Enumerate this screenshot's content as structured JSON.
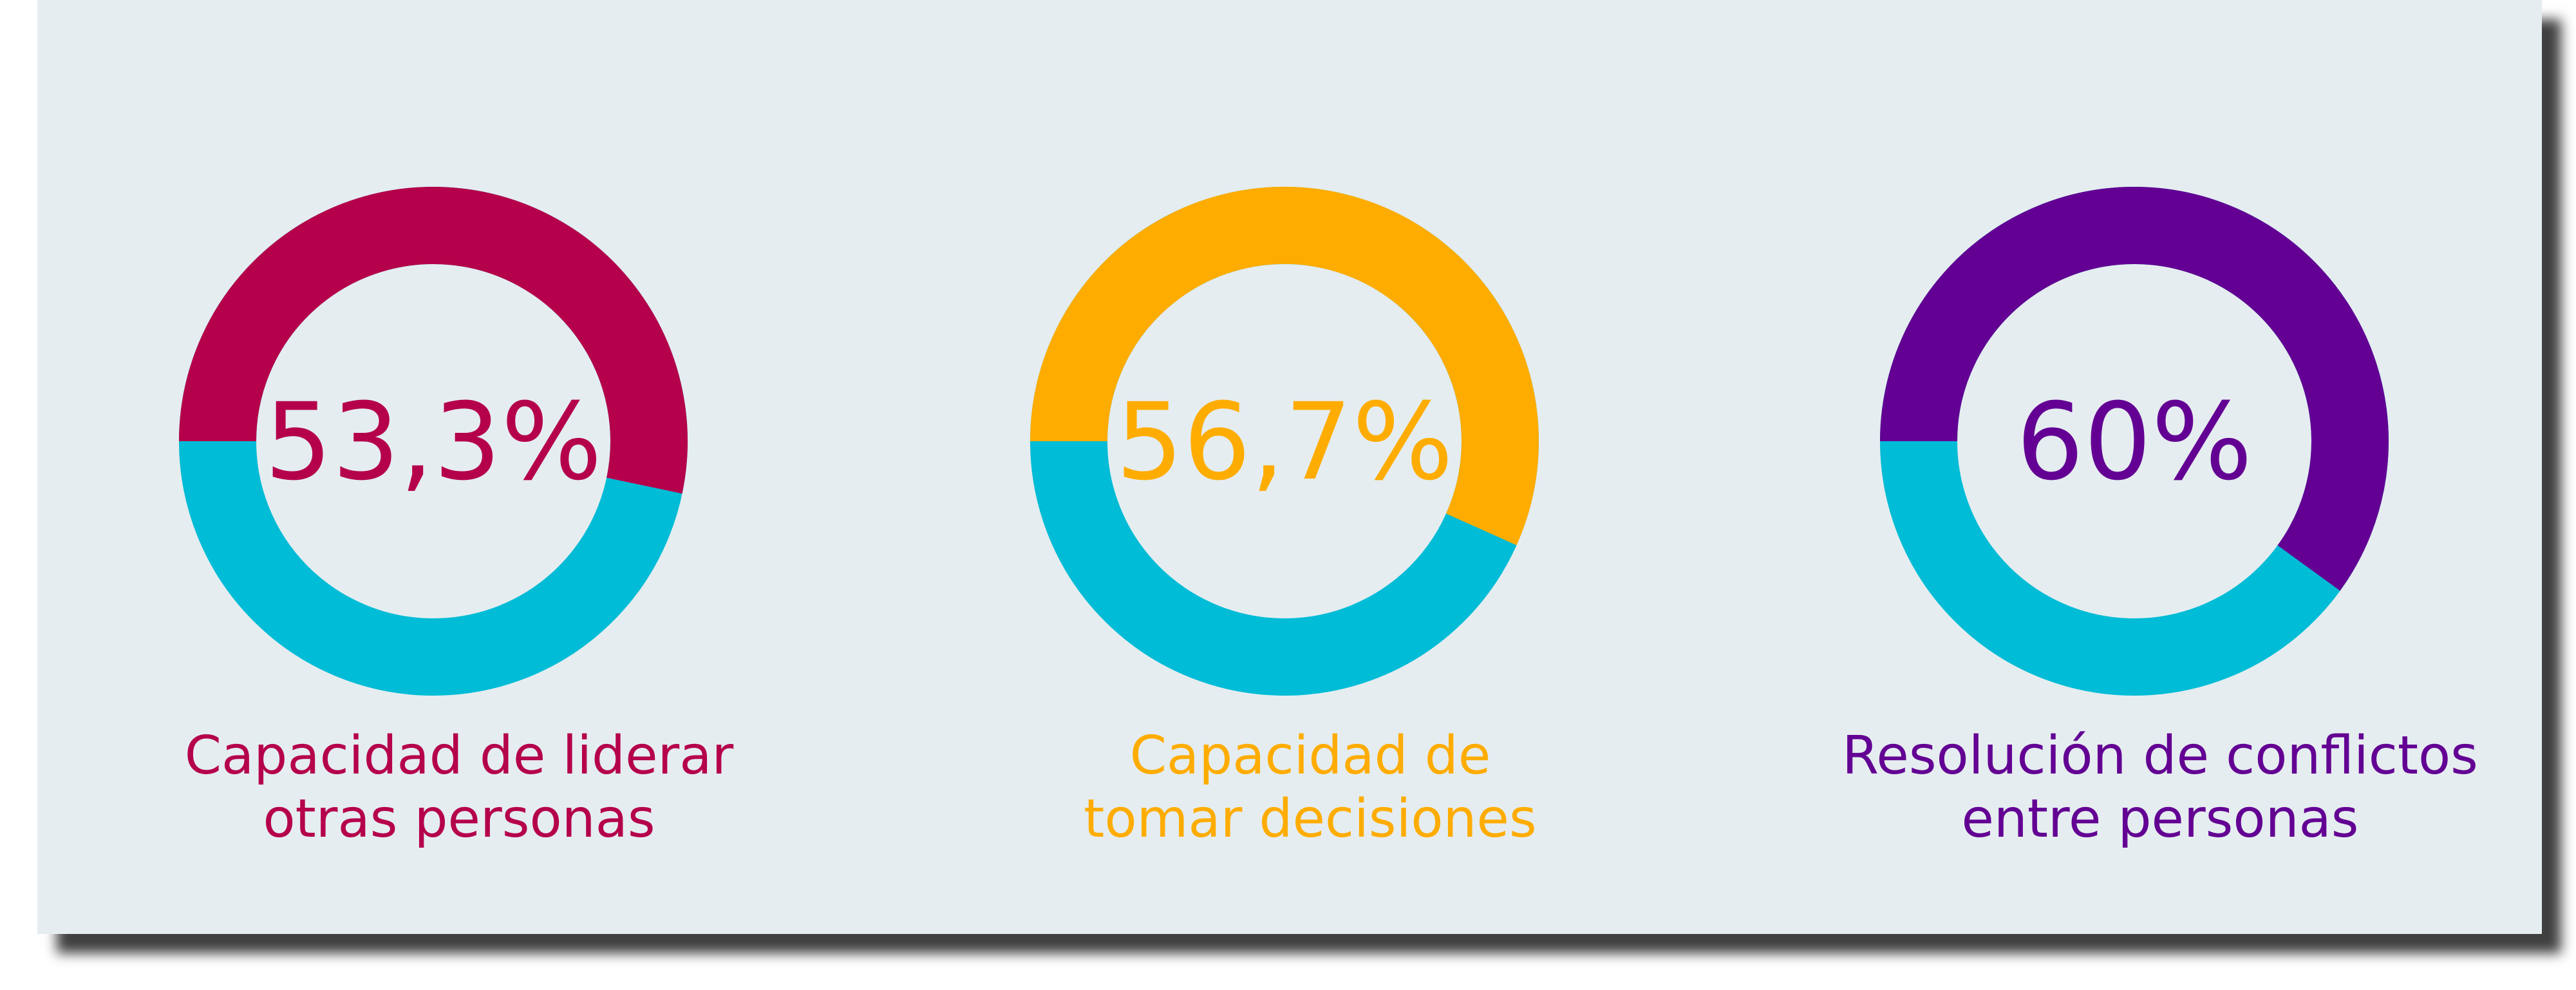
{
  "colors": {
    "background": "#e5edf0",
    "remainder": "#00bcd6"
  },
  "chart_data": {
    "type": "pie",
    "variant": "donut",
    "charts": [
      {
        "value_label": "53,3%",
        "value": 53.3,
        "label_lines": [
          "Capacidad de liderar",
          "otras personas"
        ],
        "color": "#b5004b"
      },
      {
        "value_label": "56,7%",
        "value": 56.7,
        "label_lines": [
          "Capacidad de",
          "tomar decisiones"
        ],
        "color": "#ffac00"
      },
      {
        "value_label": "60%",
        "value": 60,
        "label_lines": [
          "Resolución de conflictos",
          "entre personas"
        ],
        "color": "#630093"
      }
    ]
  }
}
